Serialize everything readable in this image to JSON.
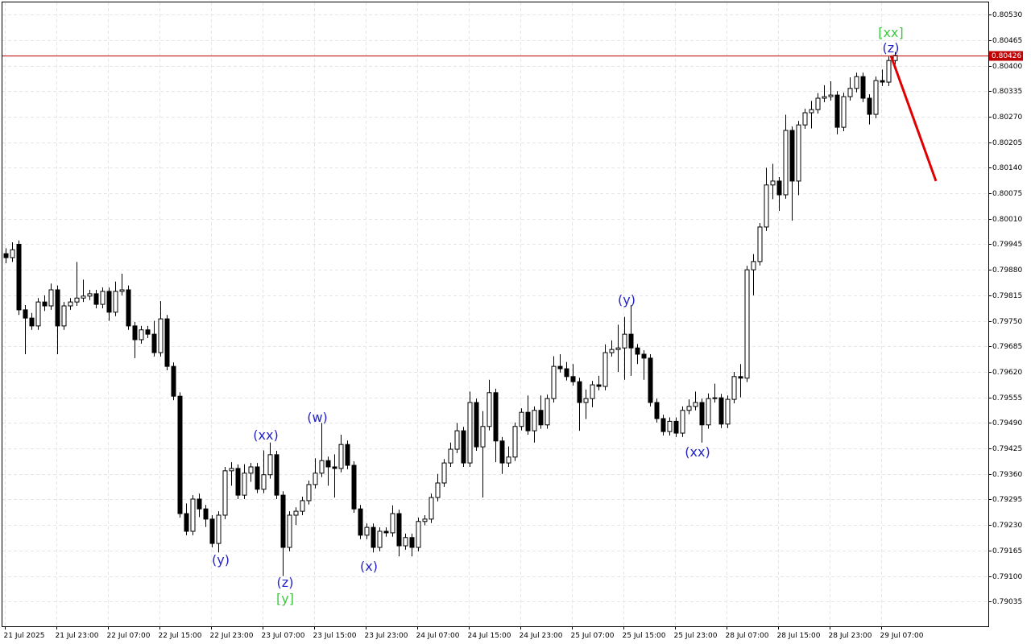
{
  "chart_data": {
    "type": "candlestick",
    "color_up": "#ffffff",
    "color_down": "#000000",
    "ylim": [
      0.78972,
      0.80561
    ],
    "yticks": [
      {
        "value": 0.8053,
        "label": "0.80530"
      },
      0.80465,
      {
        "value": 0.804,
        "label": "0.80400"
      },
      0.80335,
      {
        "value": 0.8027,
        "label": "0.80270"
      },
      0.80205,
      {
        "value": 0.8014,
        "label": "0.80140"
      },
      0.80075,
      {
        "value": 0.8001,
        "label": "0.80010"
      },
      0.79945,
      {
        "value": 0.7988,
        "label": "0.79880"
      },
      0.79815,
      {
        "value": 0.7975,
        "label": "0.79750"
      },
      0.79685,
      {
        "value": 0.7962,
        "label": "0.79620"
      },
      0.79555,
      {
        "value": 0.7949,
        "label": "0.79490"
      },
      0.79425,
      {
        "value": 0.7936,
        "label": "0.79360"
      },
      0.79295,
      {
        "value": 0.7923,
        "label": "0.79230"
      },
      0.79165,
      {
        "value": 0.791,
        "label": "0.79100"
      },
      0.79035
    ],
    "grid": true,
    "bid": 0.80426,
    "bid_color": "#c00000",
    "forecast": {
      "values": [
        0.80426,
        0.80106
      ],
      "color": "#e00000"
    },
    "annotations": [
      {
        "text": "[xx]",
        "color": "#3cc83c"
      },
      {
        "text": "(z)",
        "color": "#2323c8"
      },
      {
        "text": "(y)",
        "color": "#2323c8"
      },
      {
        "text": "(xx)",
        "color": "#2323c8"
      },
      {
        "text": "(w)",
        "color": "#2323c8"
      },
      {
        "text": "(y)",
        "color": "#2323c8"
      },
      {
        "text": "(z)",
        "color": "#2323c8"
      },
      {
        "text": "[y]",
        "color": "#3cc83c"
      },
      {
        "text": "(x)",
        "color": "#2323c8"
      },
      {
        "text": "(xx)",
        "color": "#2323c8"
      }
    ],
    "categories": [
      "21 Jul 2025",
      null,
      null,
      null,
      null,
      null,
      null,
      null,
      "21 Jul 23:00",
      null,
      null,
      null,
      null,
      null,
      null,
      null,
      "22 Jul 07:00",
      null,
      null,
      null,
      null,
      null,
      null,
      null,
      "22 Jul 15:00",
      null,
      null,
      null,
      null,
      null,
      null,
      null,
      "22 Jul 23:00",
      null,
      null,
      null,
      null,
      null,
      null,
      null,
      "23 Jul 07:00",
      null,
      null,
      null,
      null,
      null,
      null,
      null,
      "23 Jul 15:00",
      null,
      null,
      null,
      null,
      null,
      null,
      null,
      "23 Jul 23:00",
      null,
      null,
      null,
      null,
      null,
      null,
      null,
      "24 Jul 07:00",
      null,
      null,
      null,
      null,
      null,
      null,
      null,
      "24 Jul 15:00",
      null,
      null,
      null,
      null,
      null,
      null,
      null,
      "24 Jul 23:00",
      null,
      null,
      null,
      null,
      null,
      null,
      null,
      "25 Jul 07:00",
      null,
      null,
      null,
      null,
      null,
      null,
      null,
      "25 Jul 15:00",
      null,
      null,
      null,
      null,
      null,
      null,
      null,
      "25 Jul 23:00",
      null,
      null,
      null,
      null,
      null,
      null,
      null,
      "28 Jul 07:00",
      null,
      null,
      null,
      null,
      null,
      null,
      null,
      "28 Jul 15:00",
      null,
      null,
      null,
      null,
      null,
      null,
      null,
      "28 Jul 23:00",
      null,
      null,
      null,
      null,
      null,
      null,
      null,
      "29 Jul 07:00",
      null,
      null
    ],
    "candles": [
      [
        0.79921,
        0.79935,
        0.79897,
        0.79911
      ],
      [
        0.79911,
        0.7995,
        0.799,
        0.79931
      ],
      [
        0.79945,
        0.79955,
        0.79765,
        0.79778
      ],
      [
        0.79778,
        0.7979,
        0.79665,
        0.79757
      ],
      [
        0.79757,
        0.7977,
        0.79727,
        0.79737
      ],
      [
        0.79737,
        0.79808,
        0.79727,
        0.79798
      ],
      [
        0.79798,
        0.79815,
        0.79775,
        0.79788
      ],
      [
        0.79788,
        0.79845,
        0.79778,
        0.79829
      ],
      [
        0.79829,
        0.7984,
        0.79665,
        0.79737
      ],
      [
        0.79737,
        0.79798,
        0.79727,
        0.79788
      ],
      [
        0.79788,
        0.79808,
        0.79778,
        0.79798
      ],
      [
        0.79798,
        0.799,
        0.79788,
        0.79808
      ],
      [
        0.79808,
        0.79855,
        0.79798,
        0.79813
      ],
      [
        0.79813,
        0.79829,
        0.79803,
        0.79819
      ],
      [
        0.79819,
        0.79829,
        0.79782,
        0.79792
      ],
      [
        0.79792,
        0.79835,
        0.79782,
        0.79825
      ],
      [
        0.79825,
        0.79835,
        0.7975,
        0.79772
      ],
      [
        0.79772,
        0.7985,
        0.79762,
        0.79825
      ],
      [
        0.79825,
        0.7987,
        0.79815,
        0.79829
      ],
      [
        0.79829,
        0.7984,
        0.79727,
        0.79737
      ],
      [
        0.79737,
        0.79747,
        0.79655,
        0.79702
      ],
      [
        0.79702,
        0.79737,
        0.79692,
        0.79727
      ],
      [
        0.79727,
        0.79737,
        0.79706,
        0.79716
      ],
      [
        0.79716,
        0.7975,
        0.79659,
        0.79669
      ],
      [
        0.79669,
        0.798,
        0.79659,
        0.79755
      ],
      [
        0.79755,
        0.79765,
        0.79624,
        0.79634
      ],
      [
        0.79634,
        0.79644,
        0.79548,
        0.79558
      ],
      [
        0.79558,
        0.79568,
        0.79249,
        0.79259
      ],
      [
        0.79259,
        0.79285,
        0.79204,
        0.79214
      ],
      [
        0.79214,
        0.79306,
        0.79204,
        0.79296
      ],
      [
        0.79296,
        0.7931,
        0.7925,
        0.79271
      ],
      [
        0.79271,
        0.79281,
        0.79225,
        0.79245
      ],
      [
        0.79245,
        0.79255,
        0.79173,
        0.79183
      ],
      [
        0.79183,
        0.79265,
        0.7916,
        0.79255
      ],
      [
        0.79255,
        0.79378,
        0.79245,
        0.79368
      ],
      [
        0.79368,
        0.7939,
        0.7933,
        0.79374
      ],
      [
        0.79374,
        0.79384,
        0.79296,
        0.79306
      ],
      [
        0.79306,
        0.79385,
        0.79296,
        0.79362
      ],
      [
        0.79362,
        0.79388,
        0.7934,
        0.79378
      ],
      [
        0.79378,
        0.79388,
        0.79311,
        0.79321
      ],
      [
        0.79321,
        0.7942,
        0.79311,
        0.79358
      ],
      [
        0.79358,
        0.7944,
        0.79348,
        0.79409
      ],
      [
        0.79409,
        0.79419,
        0.79296,
        0.79306
      ],
      [
        0.79306,
        0.79316,
        0.791,
        0.79173
      ],
      [
        0.79173,
        0.79265,
        0.79163,
        0.79255
      ],
      [
        0.79255,
        0.79275,
        0.7923,
        0.79265
      ],
      [
        0.79265,
        0.79302,
        0.79255,
        0.79292
      ],
      [
        0.79292,
        0.79343,
        0.79282,
        0.79333
      ],
      [
        0.79333,
        0.794,
        0.79323,
        0.79362
      ],
      [
        0.79362,
        0.7949,
        0.79352,
        0.79394
      ],
      [
        0.79394,
        0.79404,
        0.7933,
        0.79378
      ],
      [
        0.79378,
        0.7941,
        0.793,
        0.79374
      ],
      [
        0.79374,
        0.7946,
        0.79364,
        0.79435
      ],
      [
        0.79435,
        0.79445,
        0.79372,
        0.79382
      ],
      [
        0.79382,
        0.79392,
        0.79261,
        0.79271
      ],
      [
        0.79271,
        0.79281,
        0.79194,
        0.79204
      ],
      [
        0.79204,
        0.79234,
        0.79194,
        0.79224
      ],
      [
        0.79224,
        0.79234,
        0.7916,
        0.79173
      ],
      [
        0.79173,
        0.79224,
        0.79163,
        0.79214
      ],
      [
        0.79214,
        0.79224,
        0.792,
        0.7921
      ],
      [
        0.7921,
        0.7928,
        0.792,
        0.79259
      ],
      [
        0.79259,
        0.79269,
        0.7915,
        0.79177
      ],
      [
        0.79177,
        0.79208,
        0.79167,
        0.79198
      ],
      [
        0.79198,
        0.79208,
        0.7915,
        0.79173
      ],
      [
        0.79173,
        0.79249,
        0.79163,
        0.79239
      ],
      [
        0.79239,
        0.79255,
        0.79229,
        0.79245
      ],
      [
        0.79245,
        0.7931,
        0.79235,
        0.793
      ],
      [
        0.793,
        0.7936,
        0.7929,
        0.79337
      ],
      [
        0.79337,
        0.79398,
        0.79327,
        0.79388
      ],
      [
        0.79388,
        0.7944,
        0.79378,
        0.79423
      ],
      [
        0.79423,
        0.7949,
        0.79413,
        0.7947
      ],
      [
        0.7947,
        0.7948,
        0.79378,
        0.79388
      ],
      [
        0.79388,
        0.7957,
        0.79378,
        0.79542
      ],
      [
        0.79542,
        0.79552,
        0.79419,
        0.79429
      ],
      [
        0.79429,
        0.7952,
        0.793,
        0.79481
      ],
      [
        0.79481,
        0.796,
        0.79471,
        0.79567
      ],
      [
        0.79567,
        0.79577,
        0.7939,
        0.79444
      ],
      [
        0.79444,
        0.79454,
        0.7936,
        0.79388
      ],
      [
        0.79388,
        0.7943,
        0.79378,
        0.79403
      ],
      [
        0.79403,
        0.79491,
        0.79393,
        0.79481
      ],
      [
        0.79481,
        0.79527,
        0.79471,
        0.79517
      ],
      [
        0.79517,
        0.7956,
        0.7946,
        0.7947
      ],
      [
        0.7947,
        0.79532,
        0.7944,
        0.79522
      ],
      [
        0.79522,
        0.7956,
        0.79475,
        0.79485
      ],
      [
        0.79485,
        0.79562,
        0.79475,
        0.79552
      ],
      [
        0.79552,
        0.7966,
        0.79542,
        0.79634
      ],
      [
        0.79634,
        0.79665,
        0.79618,
        0.79628
      ],
      [
        0.79628,
        0.79645,
        0.79598,
        0.79608
      ],
      [
        0.79608,
        0.7964,
        0.79585,
        0.79595
      ],
      [
        0.79595,
        0.79605,
        0.7947,
        0.79542
      ],
      [
        0.79542,
        0.79575,
        0.795,
        0.79552
      ],
      [
        0.79552,
        0.79597,
        0.7953,
        0.79587
      ],
      [
        0.79587,
        0.7961,
        0.79573,
        0.79583
      ],
      [
        0.79583,
        0.7969,
        0.79573,
        0.79669
      ],
      [
        0.79669,
        0.797,
        0.79659,
        0.79677
      ],
      [
        0.79677,
        0.7974,
        0.7962,
        0.79681
      ],
      [
        0.79681,
        0.7976,
        0.796,
        0.79716
      ],
      [
        0.79716,
        0.7979,
        0.7961,
        0.79681
      ],
      [
        0.79681,
        0.79691,
        0.7964,
        0.79665
      ],
      [
        0.79665,
        0.79675,
        0.796,
        0.79655
      ],
      [
        0.79655,
        0.79665,
        0.79532,
        0.79542
      ],
      [
        0.79542,
        0.79552,
        0.79491,
        0.79501
      ],
      [
        0.79501,
        0.79511,
        0.79458,
        0.79468
      ],
      [
        0.79468,
        0.79504,
        0.79458,
        0.79494
      ],
      [
        0.79494,
        0.79504,
        0.79454,
        0.79464
      ],
      [
        0.79464,
        0.79532,
        0.79454,
        0.79522
      ],
      [
        0.79522,
        0.7955,
        0.79512,
        0.79532
      ],
      [
        0.79532,
        0.7957,
        0.79522,
        0.79542
      ],
      [
        0.79542,
        0.79552,
        0.7944,
        0.79485
      ],
      [
        0.79485,
        0.79565,
        0.79475,
        0.79552
      ],
      [
        0.79552,
        0.7959,
        0.79542,
        0.79554
      ],
      [
        0.79554,
        0.79564,
        0.79477,
        0.79487
      ],
      [
        0.79487,
        0.7956,
        0.79477,
        0.7955
      ],
      [
        0.7955,
        0.7962,
        0.7954,
        0.79608
      ],
      [
        0.79608,
        0.7964,
        0.79555,
        0.79604
      ],
      [
        0.79604,
        0.7989,
        0.79594,
        0.7988
      ],
      [
        0.7988,
        0.7992,
        0.79815,
        0.79901
      ],
      [
        0.79901,
        0.79999,
        0.79891,
        0.79989
      ],
      [
        0.79989,
        0.8014,
        0.79979,
        0.80096
      ],
      [
        0.80096,
        0.8015,
        0.8006,
        0.80106
      ],
      [
        0.80106,
        0.80116,
        0.8003,
        0.80071
      ],
      [
        0.80071,
        0.80275,
        0.80061,
        0.80235
      ],
      [
        0.80235,
        0.80245,
        0.80005,
        0.80106
      ],
      [
        0.80106,
        0.80259,
        0.8007,
        0.80249
      ],
      [
        0.80249,
        0.8029,
        0.80239,
        0.8028
      ],
      [
        0.8028,
        0.8031,
        0.8024,
        0.80288
      ],
      [
        0.80288,
        0.8033,
        0.80278,
        0.80317
      ],
      [
        0.80317,
        0.8035,
        0.80307,
        0.80321
      ],
      [
        0.80321,
        0.8036,
        0.80311,
        0.80325
      ],
      [
        0.80325,
        0.80335,
        0.80225,
        0.80243
      ],
      [
        0.80243,
        0.80331,
        0.80233,
        0.80321
      ],
      [
        0.80321,
        0.8037,
        0.80311,
        0.80342
      ],
      [
        0.80342,
        0.80382,
        0.80332,
        0.80372
      ],
      [
        0.80372,
        0.80382,
        0.80307,
        0.80317
      ],
      [
        0.80317,
        0.80327,
        0.8025,
        0.80276
      ],
      [
        0.80276,
        0.80372,
        0.80266,
        0.80362
      ],
      [
        0.80362,
        0.8039,
        0.80348,
        0.80358
      ],
      [
        0.80358,
        0.80423,
        0.80348,
        0.80413
      ],
      [
        0.80413,
        0.80435,
        0.80403,
        0.80426
      ]
    ]
  }
}
